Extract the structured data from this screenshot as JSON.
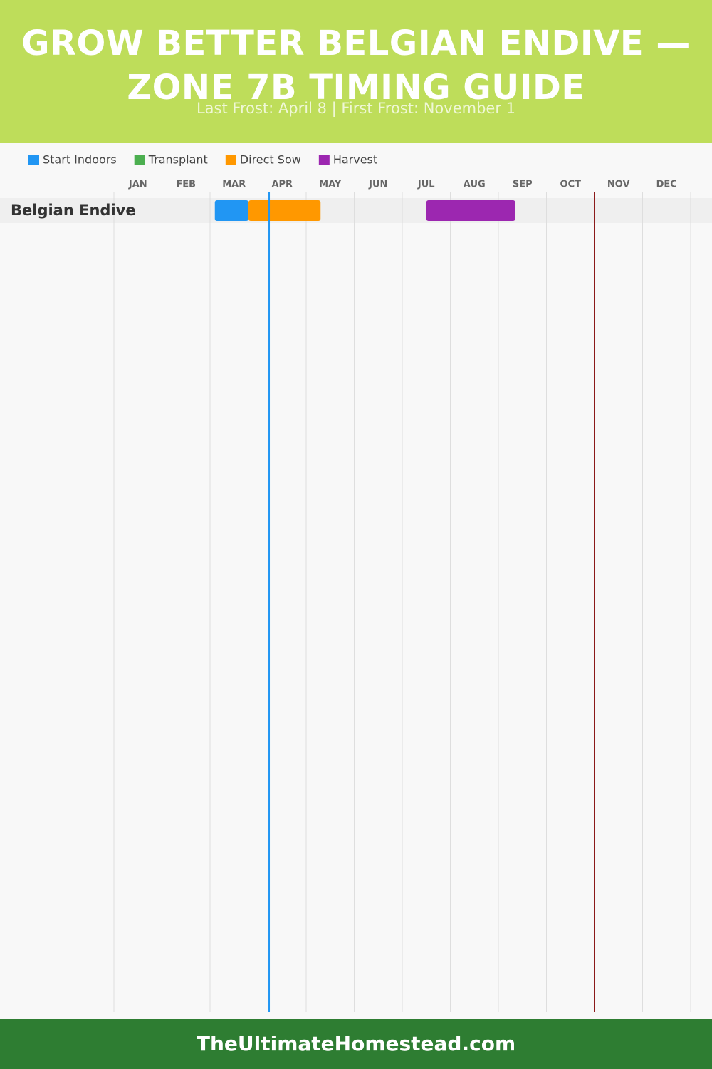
{
  "chart_data": {
    "type": "gantt",
    "title": "GROW BETTER BELGIAN ENDIVE — ZONE 7B TIMING GUIDE",
    "subtitle": "Last Frost: April 8 | First Frost: November 1",
    "categories": [
      "JAN",
      "FEB",
      "MAR",
      "APR",
      "MAY",
      "JUN",
      "JUL",
      "AUG",
      "SEP",
      "OCT",
      "NOV",
      "DEC"
    ],
    "xlim": [
      0,
      12
    ],
    "rows": [
      "Belgian Endive"
    ],
    "series": [
      {
        "name": "Start Indoors",
        "color": "#2196f3",
        "ranges": [
          [
            2.1,
            2.8
          ]
        ]
      },
      {
        "name": "Transplant",
        "color": "#4caf50",
        "ranges": []
      },
      {
        "name": "Direct Sow",
        "color": "#ff9800",
        "ranges": [
          [
            2.8,
            4.3
          ]
        ]
      },
      {
        "name": "Harvest",
        "color": "#9c27b0",
        "ranges": [
          [
            6.5,
            8.35
          ]
        ]
      }
    ],
    "markers": [
      {
        "value": 3.23,
        "color": "#2196f3"
      },
      {
        "value": 10.0,
        "color": "#8b1a1a"
      }
    ],
    "footer": "TheUltimateHomestead.com"
  }
}
